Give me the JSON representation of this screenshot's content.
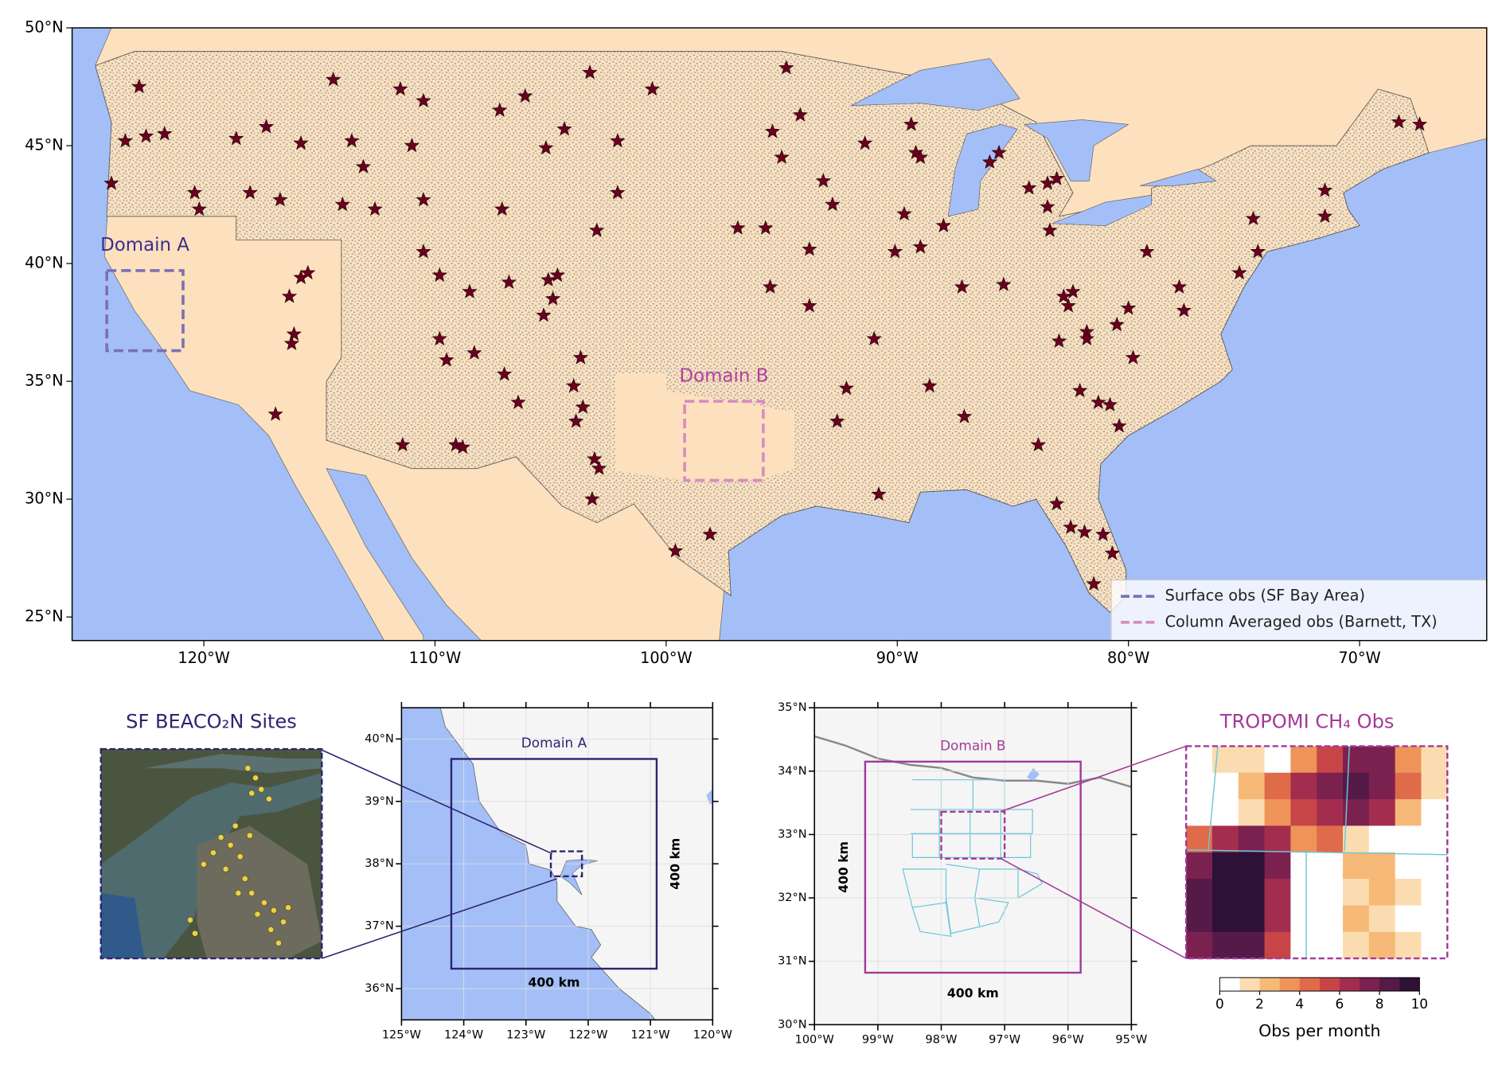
{
  "main_map": {
    "xlim": [
      -125.7,
      -64.5
    ],
    "ylim": [
      24,
      50
    ],
    "xticks": [
      {
        "value": -120,
        "label": "120°W"
      },
      {
        "value": -110,
        "label": "110°W"
      },
      {
        "value": -100,
        "label": "100°W"
      },
      {
        "value": -90,
        "label": "90°W"
      },
      {
        "value": -80,
        "label": "80°W"
      },
      {
        "value": -70,
        "label": "70°W"
      }
    ],
    "yticks": [
      {
        "value": 25,
        "label": "25°N"
      },
      {
        "value": 30,
        "label": "30°N"
      },
      {
        "value": 35,
        "label": "35°N"
      },
      {
        "value": 40,
        "label": "40°N"
      },
      {
        "value": 45,
        "label": "45°N"
      },
      {
        "value": 50,
        "label": "50°N"
      }
    ],
    "sites": {
      "color": "#6b0020",
      "lon": [
        -122.8,
        -123.4,
        -122.5,
        -121.7,
        -124.0,
        -118.6,
        -117.3,
        -115.8,
        -114.4,
        -113.6,
        -113.1,
        -114.0,
        -112.6,
        -118.0,
        -116.7,
        -120.4,
        -120.2,
        -111.5,
        -110.5,
        -111.0,
        -110.5,
        -110.5,
        -109.8,
        -108.5,
        -107.1,
        -107.2,
        -106.1,
        -103.3,
        -100.6,
        -104.4,
        -105.2,
        -102.1,
        -102.1,
        -103.0,
        -106.8,
        -105.1,
        -104.7,
        -104.9,
        -105.3,
        -109.8,
        -109.5,
        -108.3,
        -107.0,
        -106.4,
        -104.0,
        -103.7,
        -103.6,
        -103.9,
        -111.4,
        -109.1,
        -108.8,
        -116.9,
        -116.3,
        -115.8,
        -115.5,
        -116.1,
        -116.2,
        -103.1,
        -102.9,
        -103.2,
        -99.6,
        -98.1,
        -94.8,
        -95.4,
        -94.2,
        -95.0,
        -93.2,
        -92.8,
        -91.4,
        -89.4,
        -89.2,
        -89.0,
        -89.7,
        -89.0,
        -90.1,
        -88.0,
        -93.8,
        -95.7,
        -96.9,
        -95.5,
        -93.8,
        -91.0,
        -92.2,
        -92.6,
        -88.6,
        -87.1,
        -87.2,
        -85.4,
        -90.8,
        -83.9,
        -82.1,
        -81.3,
        -80.8,
        -80.4,
        -79.8,
        -83.0,
        -81.8,
        -80.5,
        -80.0,
        -82.8,
        -82.4,
        -82.6,
        -81.8,
        -77.6,
        -77.8,
        -75.2,
        -79.2,
        -74.4,
        -74.6,
        -83.5,
        -84.3,
        -83.1,
        -83.5,
        -83.4,
        -86.0,
        -85.6,
        -71.5,
        -71.5,
        -68.3,
        -67.4,
        -83.1,
        -82.5,
        -81.9,
        -81.1,
        -80.7,
        -81.5
      ],
      "lat": [
        47.5,
        45.2,
        45.4,
        45.5,
        43.4,
        45.3,
        45.8,
        45.1,
        47.8,
        45.2,
        44.1,
        42.5,
        42.3,
        43.0,
        42.7,
        43.0,
        42.3,
        47.4,
        46.9,
        45.0,
        42.7,
        40.5,
        39.5,
        38.8,
        42.3,
        46.5,
        47.1,
        48.1,
        47.4,
        45.7,
        44.9,
        45.2,
        43.0,
        41.4,
        39.2,
        39.3,
        39.5,
        38.5,
        37.8,
        36.8,
        35.9,
        36.2,
        35.3,
        34.1,
        34.8,
        36.0,
        33.9,
        33.3,
        32.3,
        32.3,
        32.2,
        33.6,
        38.6,
        39.4,
        39.6,
        37.0,
        36.6,
        31.7,
        31.3,
        30.0,
        27.8,
        28.5,
        48.3,
        45.6,
        46.3,
        44.5,
        43.5,
        42.5,
        45.1,
        45.9,
        44.7,
        44.5,
        42.1,
        40.7,
        40.5,
        41.6,
        40.6,
        41.5,
        41.5,
        39.0,
        38.2,
        36.8,
        34.7,
        33.3,
        34.8,
        33.5,
        39.0,
        39.1,
        30.2,
        32.3,
        34.6,
        34.1,
        34.0,
        33.1,
        36.0,
        36.7,
        37.1,
        37.4,
        38.1,
        38.6,
        38.8,
        38.2,
        36.8,
        38.0,
        39.0,
        39.6,
        40.5,
        40.5,
        41.9,
        43.4,
        43.2,
        43.6,
        42.4,
        41.4,
        44.3,
        44.7,
        43.1,
        42.0,
        46.0,
        45.9,
        29.8,
        28.8,
        28.6,
        28.5,
        27.7,
        26.4
      ]
    },
    "domains": [
      {
        "label": "Domain A",
        "lon": [
          -124.2,
          -120.9
        ],
        "lat": [
          36.3,
          39.7
        ],
        "color": "#7a70b5",
        "label_color": "#3a2f8f"
      },
      {
        "label": "Domain B",
        "lon": [
          -99.2,
          -95.8
        ],
        "lat": [
          30.8,
          34.15
        ],
        "color": "#d88cbf",
        "label_color": "#b040a0"
      }
    ],
    "legend": {
      "position": "lower right",
      "entries": [
        {
          "name": "Surface obs (SF Bay Area)",
          "color": "#7a70b5"
        },
        {
          "name": "Column Averaged obs (Barnett, TX)",
          "color": "#d88cbf"
        }
      ]
    }
  },
  "inset_a": {
    "xlim": [
      -125,
      -120
    ],
    "ylim": [
      35.5,
      40.5
    ],
    "xticks": [
      {
        "value": -125,
        "label": "125°W"
      },
      {
        "value": -124,
        "label": "124°W"
      },
      {
        "value": -123,
        "label": "123°W"
      },
      {
        "value": -122,
        "label": "122°W"
      },
      {
        "value": -121,
        "label": "121°W"
      },
      {
        "value": -120,
        "label": "120°W"
      }
    ],
    "yticks": [
      {
        "value": 36,
        "label": "36°N"
      },
      {
        "value": 37,
        "label": "37°N"
      },
      {
        "value": 38,
        "label": "38°N"
      },
      {
        "value": 39,
        "label": "39°N"
      },
      {
        "value": 40,
        "label": "40°N"
      }
    ],
    "label": "Domain A",
    "color": "#2c2471",
    "box": {
      "lon": [
        -124.2,
        -120.9
      ],
      "lat": [
        36.32,
        39.68
      ]
    },
    "zoom_box": {
      "lon": [
        -122.6,
        -122.1
      ],
      "lat": [
        37.8,
        38.2
      ]
    },
    "width_label": "400 km",
    "height_label": "400 km"
  },
  "inset_b": {
    "xlim": [
      -100,
      -95
    ],
    "ylim": [
      30,
      35
    ],
    "xticks": [
      {
        "value": -100,
        "label": "100°W"
      },
      {
        "value": -99,
        "label": "99°W"
      },
      {
        "value": -98,
        "label": "98°W"
      },
      {
        "value": -97,
        "label": "97°W"
      },
      {
        "value": -96,
        "label": "96°W"
      },
      {
        "value": -95,
        "label": "95°W"
      }
    ],
    "yticks": [
      {
        "value": 30,
        "label": "30°N"
      },
      {
        "value": 31,
        "label": "31°N"
      },
      {
        "value": 32,
        "label": "32°N"
      },
      {
        "value": 33,
        "label": "33°N"
      },
      {
        "value": 34,
        "label": "34°N"
      },
      {
        "value": 35,
        "label": "35°N"
      }
    ],
    "label": "Domain B",
    "color": "#a33a98",
    "box": {
      "lon": [
        -99.2,
        -95.8
      ],
      "lat": [
        30.82,
        34.15
      ]
    },
    "zoom_box": {
      "lon": [
        -98.0,
        -97.0
      ],
      "lat": [
        32.62,
        33.36
      ]
    },
    "width_label": "400 km",
    "height_label": "400 km"
  },
  "sf_sites": {
    "title": "SF BEACO₂N Sites"
  },
  "tropomi": {
    "title": "TROPOMI CH₄ Obs",
    "grid": [
      [
        0,
        1,
        1,
        0,
        3,
        5,
        7,
        7,
        3,
        1
      ],
      [
        0,
        0,
        2,
        4,
        6,
        7,
        8,
        7,
        4,
        1
      ],
      [
        0,
        0,
        1,
        3,
        5,
        6,
        7,
        6,
        2,
        0
      ],
      [
        4,
        6,
        7,
        6,
        3,
        4,
        1,
        0,
        0,
        0
      ],
      [
        7,
        9,
        9,
        7,
        0,
        0,
        2,
        2,
        0,
        0
      ],
      [
        8,
        10,
        9,
        6,
        0,
        0,
        1,
        2,
        1,
        0
      ],
      [
        8,
        9,
        9,
        6,
        0,
        0,
        2,
        1,
        0,
        0
      ],
      [
        7,
        8,
        8,
        5,
        0,
        0,
        1,
        2,
        1,
        0
      ]
    ],
    "colorbar": {
      "lim": [
        0,
        10
      ],
      "ticks": [
        0,
        2,
        4,
        6,
        8,
        10
      ],
      "label": "Obs per month",
      "colors": [
        "#ffffff",
        "#fbdcb0",
        "#f7b977",
        "#ee9458",
        "#e06b4a",
        "#c84547",
        "#a32d4e",
        "#7b2150",
        "#561a48",
        "#2e1136"
      ]
    }
  }
}
